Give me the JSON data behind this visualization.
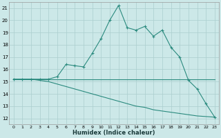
{
  "xlabel": "Humidex (Indice chaleur)",
  "x": [
    0,
    1,
    2,
    3,
    4,
    5,
    6,
    7,
    8,
    9,
    10,
    11,
    12,
    13,
    14,
    15,
    16,
    17,
    18,
    19,
    20,
    21,
    22,
    23
  ],
  "line1": [
    15.2,
    15.2,
    15.2,
    15.2,
    15.2,
    15.4,
    16.4,
    16.3,
    16.2,
    17.3,
    18.5,
    20.0,
    21.2,
    19.4,
    19.2,
    19.5,
    18.7,
    19.2,
    17.8,
    17.0,
    15.1,
    14.4,
    13.2,
    12.1
  ],
  "line2": [
    15.2,
    15.2,
    15.2,
    15.2,
    15.2,
    15.2,
    15.2,
    15.2,
    15.2,
    15.2,
    15.2,
    15.2,
    15.2,
    15.2,
    15.2,
    15.2,
    15.2,
    15.2,
    15.2,
    15.2,
    15.2,
    15.2,
    15.2,
    15.2
  ],
  "line3": [
    15.2,
    15.2,
    15.2,
    15.1,
    15.0,
    14.8,
    14.6,
    14.4,
    14.2,
    14.0,
    13.8,
    13.6,
    13.4,
    13.2,
    13.0,
    12.9,
    12.7,
    12.6,
    12.5,
    12.4,
    12.3,
    12.2,
    12.15,
    12.1
  ],
  "ylim_min": 11.5,
  "ylim_max": 21.5,
  "yticks": [
    12,
    13,
    14,
    15,
    16,
    17,
    18,
    19,
    20,
    21
  ],
  "color": "#2a8a7e",
  "bg_color": "#cce8e8",
  "grid_color": "#aacece"
}
